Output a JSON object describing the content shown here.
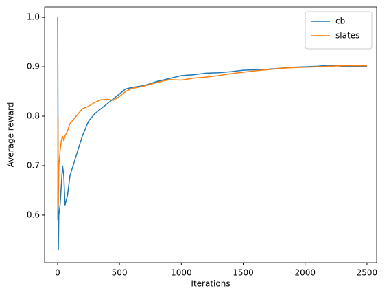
{
  "chart_data": {
    "type": "line",
    "xlabel": "Iterations",
    "ylabel": "Average reward",
    "x": [
      1,
      3,
      6,
      10,
      20,
      30,
      40,
      50,
      60,
      80,
      100,
      150,
      200,
      250,
      300,
      350,
      400,
      450,
      500,
      550,
      600,
      700,
      800,
      900,
      1000,
      1100,
      1200,
      1300,
      1400,
      1500,
      1600,
      1700,
      1800,
      1900,
      2000,
      2100,
      2200,
      2300,
      2400,
      2500
    ],
    "series": [
      {
        "name": "cb",
        "color": "#1f77b4",
        "values": [
          1.0,
          0.8,
          0.53,
          0.6,
          0.62,
          0.66,
          0.7,
          0.68,
          0.62,
          0.64,
          0.68,
          0.72,
          0.76,
          0.79,
          0.805,
          0.815,
          0.825,
          0.835,
          0.845,
          0.855,
          0.858,
          0.862,
          0.87,
          0.876,
          0.882,
          0.884,
          0.887,
          0.888,
          0.89,
          0.893,
          0.894,
          0.895,
          0.897,
          0.899,
          0.9,
          0.901,
          0.903,
          0.901,
          0.901,
          0.901
        ]
      },
      {
        "name": "slates",
        "color": "#ff7f0e",
        "values": [
          0.59,
          0.8,
          0.62,
          0.7,
          0.73,
          0.75,
          0.76,
          0.75,
          0.76,
          0.77,
          0.785,
          0.8,
          0.815,
          0.82,
          0.828,
          0.833,
          0.834,
          0.832,
          0.84,
          0.85,
          0.856,
          0.861,
          0.868,
          0.874,
          0.873,
          0.877,
          0.879,
          0.882,
          0.886,
          0.889,
          0.892,
          0.894,
          0.897,
          0.898,
          0.899,
          0.9,
          0.901,
          0.902,
          0.902,
          0.902
        ]
      }
    ],
    "xlim": [
      -105,
      2578
    ],
    "ylim": [
      0.504,
      1.021
    ],
    "xticks": [
      0,
      500,
      1000,
      1500,
      2000,
      2500
    ],
    "yticks": [
      0.6,
      0.7,
      0.8,
      0.9,
      {
        "value": 1,
        "label": "1.0"
      }
    ],
    "grid": false,
    "legend": "upper right"
  }
}
